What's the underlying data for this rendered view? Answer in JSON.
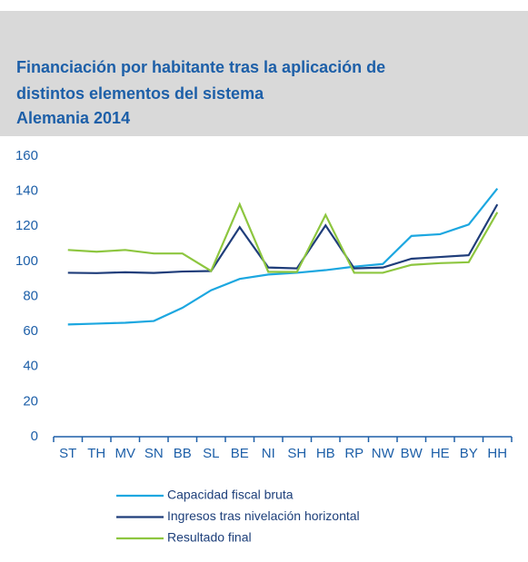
{
  "chart_data": {
    "type": "line",
    "title": [
      "Financiación por habitante tras la aplicación de",
      "distintos elementos del sistema",
      "Alemania 2014"
    ],
    "categories": [
      "ST",
      "TH",
      "MV",
      "SN",
      "BB",
      "SL",
      "BE",
      "NI",
      "SH",
      "HB",
      "RP",
      "NW",
      "BW",
      "HE",
      "BY",
      "HH"
    ],
    "series": [
      {
        "name": "Capacidad fiscal bruta",
        "color": "#1ca7e0",
        "values": [
          64,
          64.5,
          65,
          66,
          73.5,
          83.5,
          90,
          92.5,
          93.5,
          95,
          97,
          98.5,
          114.5,
          115.5,
          121,
          141.5
        ]
      },
      {
        "name": "Ingresos tras nivelación horizontal",
        "color": "#1f3d7a",
        "values": [
          93.5,
          93.3,
          93.8,
          93.4,
          94.2,
          94.5,
          119.5,
          96.5,
          96,
          120.5,
          96,
          96.5,
          101.5,
          102.5,
          103.5,
          132.5
        ]
      },
      {
        "name": "Resultado final",
        "color": "#8dc63f",
        "values": [
          106.5,
          105.5,
          106.5,
          104.5,
          104.5,
          94.5,
          132.5,
          94,
          94,
          126.5,
          93.5,
          93.5,
          98,
          99,
          99.5,
          128
        ]
      }
    ],
    "ylim": [
      0,
      160
    ],
    "yticks": [
      0,
      20,
      40,
      60,
      80,
      100,
      120,
      140,
      160
    ],
    "grid": false
  }
}
